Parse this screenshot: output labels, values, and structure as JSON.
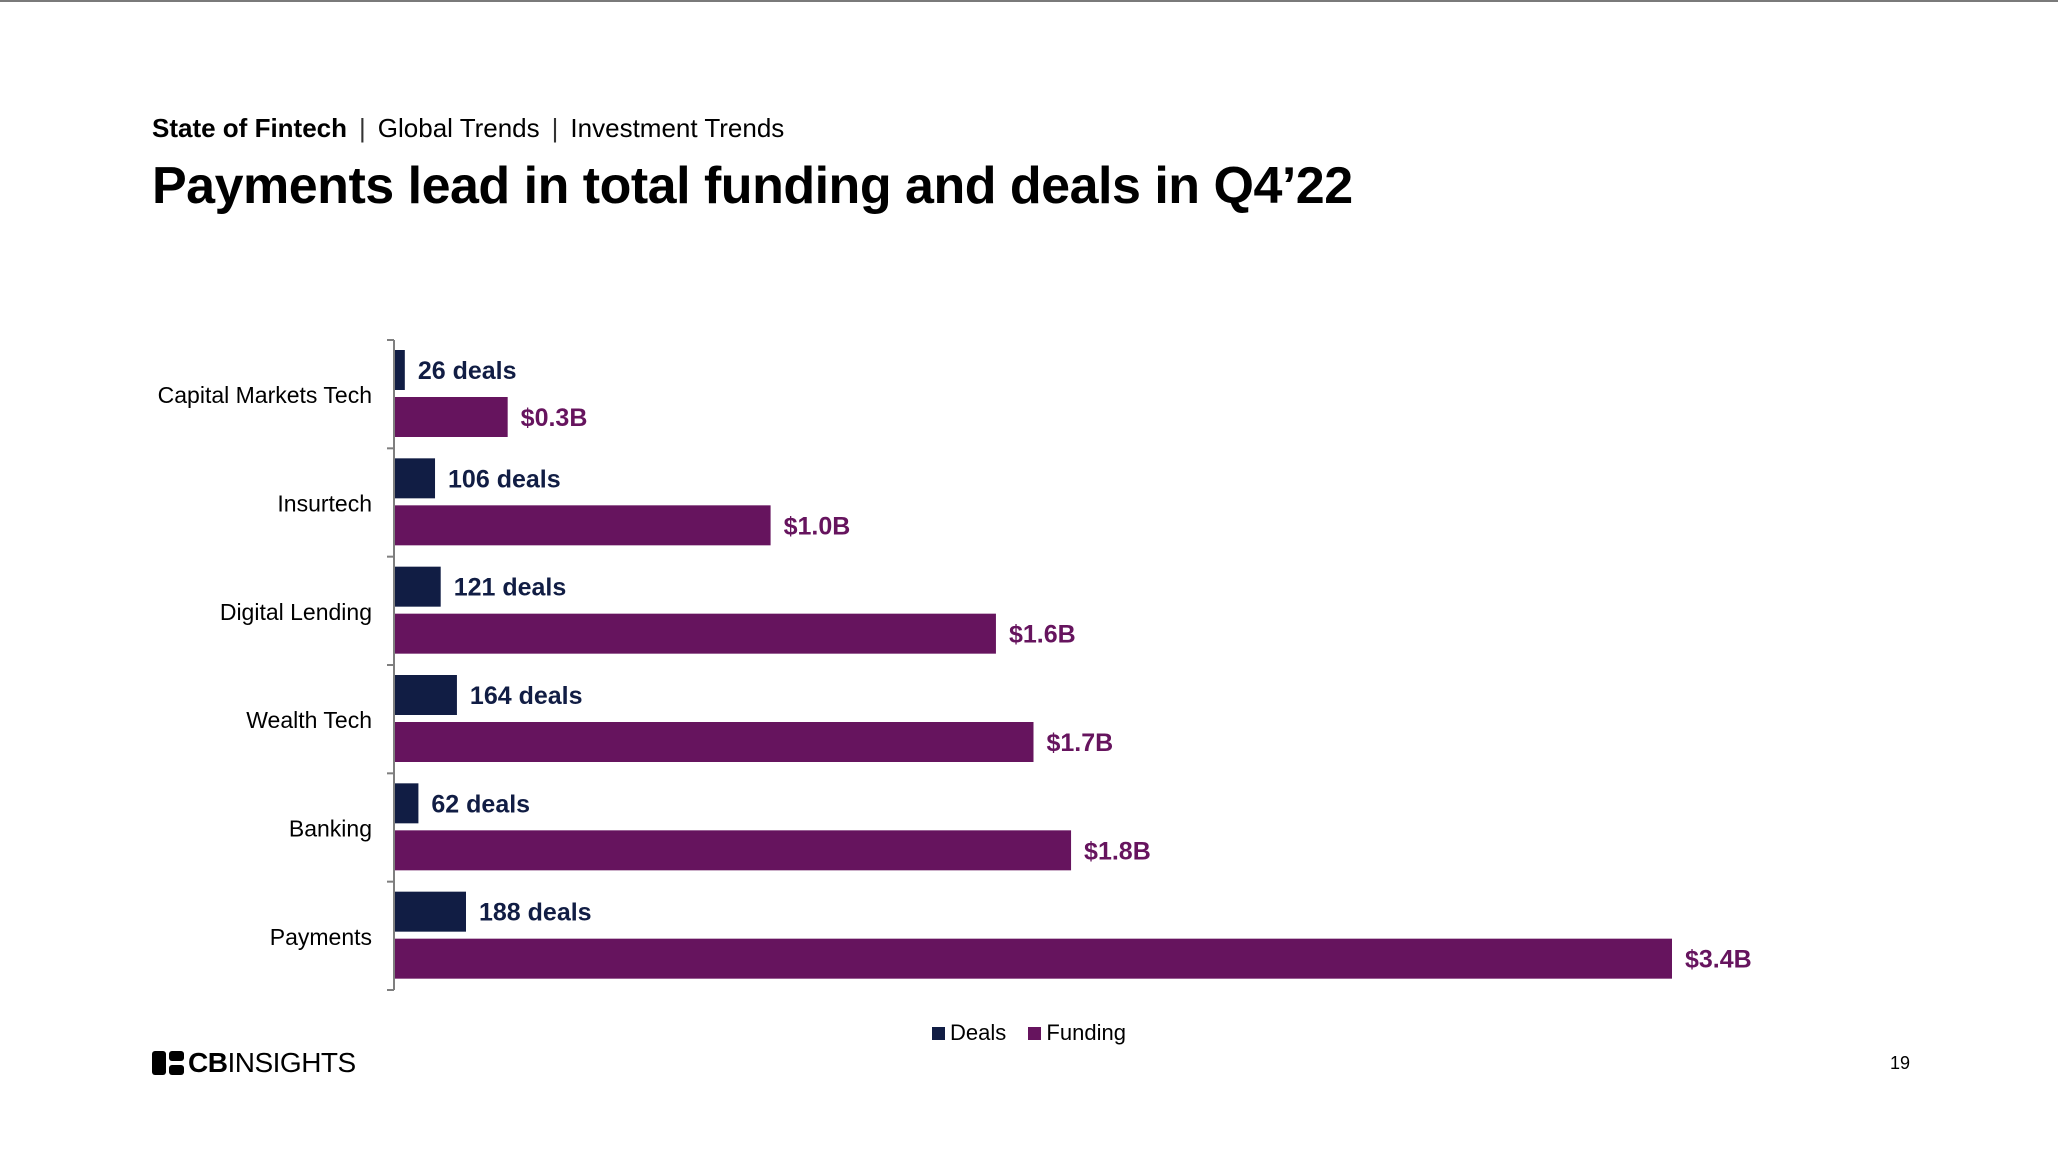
{
  "header": {
    "breadcrumb": [
      "State of Fintech",
      "Global Trends",
      "Investment Trends"
    ],
    "separator": "|",
    "title": "Payments lead in total funding and deals in Q4’22"
  },
  "colors": {
    "deals": "#111d44",
    "funding": "#66145e",
    "axis": "#7f7f7f",
    "text": "#000000"
  },
  "chart_data": {
    "type": "bar",
    "orientation": "horizontal",
    "title": "",
    "xlabel": "",
    "ylabel": "",
    "categories": [
      "Capital Markets Tech",
      "Insurtech",
      "Digital Lending",
      "Wealth Tech",
      "Banking",
      "Payments"
    ],
    "series": [
      {
        "name": "Deals",
        "values": [
          26,
          106,
          121,
          164,
          62,
          188
        ],
        "labels": [
          "26 deals",
          "106 deals",
          "121 deals",
          "164 deals",
          "62 deals",
          "188 deals"
        ]
      },
      {
        "name": "Funding",
        "values": [
          0.3,
          1.0,
          1.6,
          1.7,
          1.8,
          3.4
        ],
        "labels": [
          "$0.3B",
          "$1.0B",
          "$1.6B",
          "$1.7B",
          "$1.8B",
          "$3.4B"
        ]
      }
    ],
    "legend_position": "bottom",
    "grid": false
  },
  "footer": {
    "logo_text_bold": "CB",
    "logo_text_light": "INSIGHTS",
    "page_number": "19"
  }
}
